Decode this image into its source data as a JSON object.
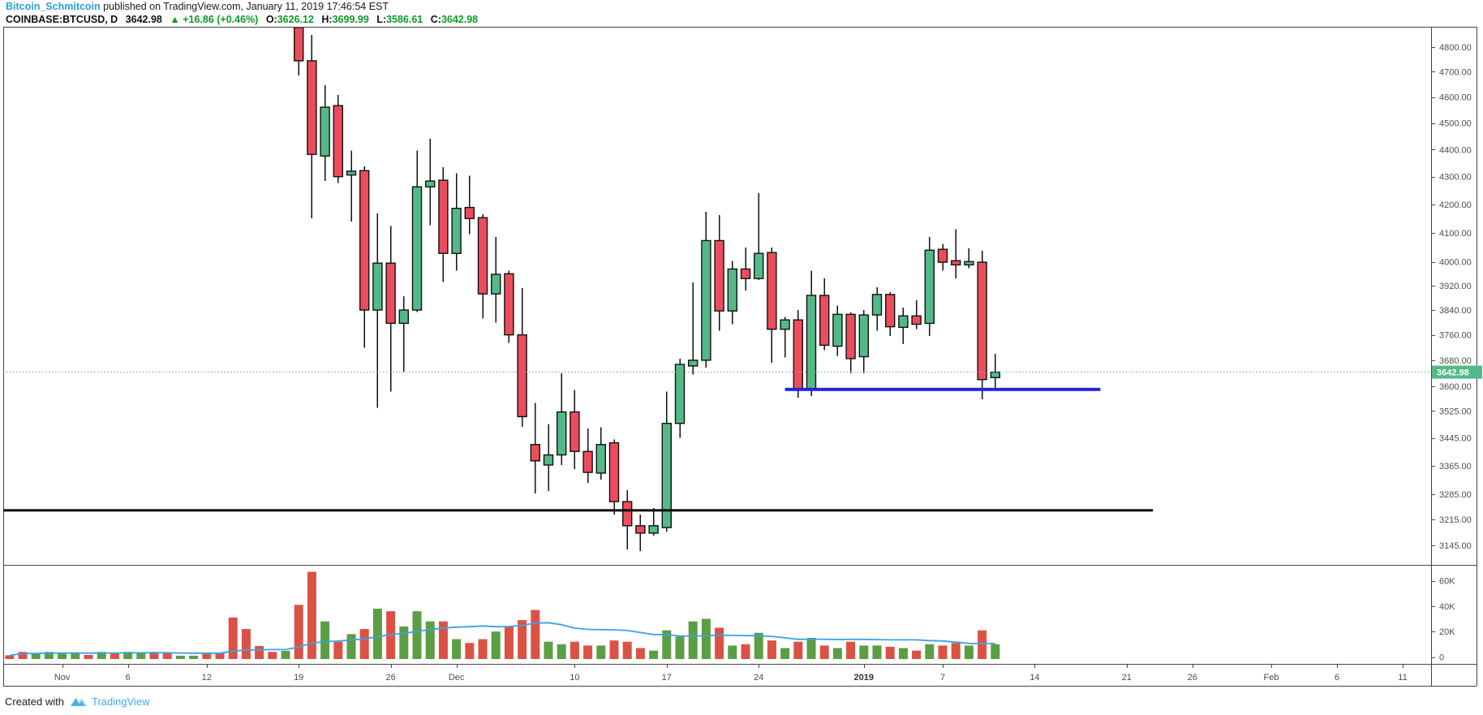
{
  "header": {
    "author": "Bitcoin_Schmitcoin",
    "published": "published on TradingView.com, January 11, 2019 17:46:54 EST",
    "symbol": "COINBASE:BTCUSD, D",
    "last_price": "3642.98",
    "up_arrow": "▲",
    "change": "+16.86 (+0.46%)",
    "ohlc": [
      {
        "label": "O:",
        "value": "3626.12"
      },
      {
        "label": "H:",
        "value": "3699.99"
      },
      {
        "label": "L:",
        "value": "3586.61"
      },
      {
        "label": "C:",
        "value": "3642.98"
      }
    ]
  },
  "footer": {
    "created_with": "Created with",
    "brand": "TradingView"
  },
  "colors": {
    "candle_up": "#53B987",
    "candle_down": "#EB4D5C",
    "candle_border": "#111111",
    "vol_up": "#5B9E43",
    "vol_down": "#DB5245",
    "volume_ma": "#3AA2E8",
    "support_line_blue": "#2424DD",
    "level_line_black": "#0B0B0B",
    "price_line": "#53B987",
    "price_label_bg": "#53B987",
    "price_label_text": "#ffffff",
    "axis_text": "#4d4d4d",
    "frame": "#444444",
    "author_link": "#2B9FD7",
    "brand_link": "#41ABDE",
    "text_green": "#0A9B26"
  },
  "chart_data": {
    "type": "candlestick+volume",
    "title": "COINBASE:BTCUSD, D",
    "scale": "log",
    "price_axis_ticks": [
      {
        "label": "4800.00",
        "value": 4800
      },
      {
        "label": "4700.00",
        "value": 4700
      },
      {
        "label": "4600.00",
        "value": 4600
      },
      {
        "label": "4500.00",
        "value": 4500
      },
      {
        "label": "4400.00",
        "value": 4400
      },
      {
        "label": "4300.00",
        "value": 4300
      },
      {
        "label": "4200.00",
        "value": 4200
      },
      {
        "label": "4100.00",
        "value": 4100
      },
      {
        "label": "4000.00",
        "value": 4000
      },
      {
        "label": "3920.00",
        "value": 3920
      },
      {
        "label": "3840.00",
        "value": 3840
      },
      {
        "label": "3760.00",
        "value": 3760
      },
      {
        "label": "3680.00",
        "value": 3680
      },
      {
        "label": "3600.00",
        "value": 3600
      },
      {
        "label": "3525.00",
        "value": 3525
      },
      {
        "label": "3445.00",
        "value": 3445
      },
      {
        "label": "3365.00",
        "value": 3365
      },
      {
        "label": "3285.00",
        "value": 3285
      },
      {
        "label": "3215.00",
        "value": 3215
      },
      {
        "label": "3145.00",
        "value": 3145
      }
    ],
    "volume_axis_ticks": [
      {
        "label": "60K",
        "value": 60
      },
      {
        "label": "40K",
        "value": 40
      },
      {
        "label": "20K",
        "value": 20
      },
      {
        "label": "0",
        "value": 0
      }
    ],
    "time_ticks": [
      {
        "label": "Nov",
        "day": 4
      },
      {
        "label": "6",
        "day": 9
      },
      {
        "label": "12",
        "day": 15
      },
      {
        "label": "19",
        "day": 22
      },
      {
        "label": "26",
        "day": 29
      },
      {
        "label": "Dec",
        "day": 34
      },
      {
        "label": "10",
        "day": 43
      },
      {
        "label": "17",
        "day": 50
      },
      {
        "label": "24",
        "day": 57
      },
      {
        "label": "2019",
        "day": 65,
        "bold": true
      },
      {
        "label": "7",
        "day": 71
      },
      {
        "label": "14",
        "day": 78
      },
      {
        "label": "21",
        "day": 85
      },
      {
        "label": "26",
        "day": 90
      },
      {
        "label": "Feb",
        "day": 96
      },
      {
        "label": "6",
        "day": 101
      },
      {
        "label": "11",
        "day": 106
      }
    ],
    "current_price": {
      "value": 3642.98,
      "label": "3642.98"
    },
    "drawings": [
      {
        "name": "support-line-blue",
        "price": 3590,
        "from_day": 59,
        "to_day": 83,
        "width": 4
      },
      {
        "name": "level-line-black",
        "price": 3240,
        "from_left_edge": true,
        "to_day": 87,
        "width": 3
      }
    ],
    "volume_ma_period": 20,
    "pre_candle_volume": {
      "columns": [
        "date",
        "dir",
        "volume_k"
      ],
      "rows": [
        [
          "Oct 28",
          "d",
          1.3
        ],
        [
          "Oct 29",
          "d",
          4
        ],
        [
          "Oct 30",
          "u",
          3
        ],
        [
          "Oct 31",
          "u",
          4
        ],
        [
          "Nov 1",
          "u",
          3.5
        ],
        [
          "Nov 2",
          "u",
          3.5
        ],
        [
          "Nov 3",
          "d",
          1.6
        ],
        [
          "Nov 4",
          "u",
          4
        ],
        [
          "Nov 5",
          "d",
          3.5
        ],
        [
          "Nov 6",
          "u",
          4
        ],
        [
          "Nov 7",
          "u",
          3.5
        ],
        [
          "Nov 8",
          "d",
          4
        ],
        [
          "Nov 9",
          "d",
          3
        ],
        [
          "Nov 10",
          "u",
          1
        ],
        [
          "Nov 11",
          "u",
          1
        ],
        [
          "Nov 12",
          "d",
          3
        ],
        [
          "Nov 13",
          "d",
          3.5
        ],
        [
          "Nov 14",
          "d",
          31
        ],
        [
          "Nov 15",
          "d",
          22
        ],
        [
          "Nov 16",
          "d",
          8.6
        ],
        [
          "Nov 17",
          "d",
          4
        ],
        [
          "Nov 18",
          "u",
          4.8
        ]
      ]
    },
    "candles": {
      "columns": [
        "date",
        "dir",
        "open",
        "high",
        "low",
        "close",
        "volume_k"
      ],
      "rows": [
        [
          "Nov 19",
          "d",
          4880,
          4905,
          4686,
          4744,
          41
        ],
        [
          "Nov 20",
          "d",
          4744,
          4850,
          4150,
          4382,
          67
        ],
        [
          "Nov 21",
          "u",
          4376,
          4647,
          4284,
          4561,
          28
        ],
        [
          "Nov 22",
          "d",
          4567,
          4608,
          4277,
          4300,
          12
        ],
        [
          "Nov 23",
          "u",
          4306,
          4397,
          4139,
          4320,
          18
        ],
        [
          "Nov 24",
          "d",
          4322,
          4338,
          3719,
          3840,
          22
        ],
        [
          "Nov 25",
          "u",
          3840,
          4168,
          3535,
          3996,
          38
        ],
        [
          "Nov 26",
          "d",
          3996,
          4124,
          3583,
          3797,
          36
        ],
        [
          "Nov 27",
          "u",
          3797,
          3885,
          3644,
          3840,
          24
        ],
        [
          "Nov 28",
          "u",
          3840,
          4397,
          3833,
          4263,
          36
        ],
        [
          "Nov 29",
          "u",
          4263,
          4440,
          4127,
          4284,
          28
        ],
        [
          "Nov 30",
          "d",
          4287,
          4334,
          3933,
          4029,
          28
        ],
        [
          "Dec 1",
          "u",
          4029,
          4313,
          3971,
          4186,
          14
        ],
        [
          "Dec 2",
          "d",
          4189,
          4303,
          4096,
          4150,
          11
        ],
        [
          "Dec 3",
          "d",
          4153,
          4165,
          3813,
          3893,
          14
        ],
        [
          "Dec 4",
          "u",
          3893,
          4085,
          3799,
          3958,
          20
        ],
        [
          "Dec 5",
          "d",
          3960,
          3971,
          3735,
          3760,
          24
        ],
        [
          "Dec 6",
          "d",
          3760,
          3912,
          3478,
          3508,
          29
        ],
        [
          "Dec 7",
          "d",
          3426,
          3549,
          3287,
          3379,
          37
        ],
        [
          "Dec 8",
          "u",
          3367,
          3486,
          3294,
          3396,
          12
        ],
        [
          "Dec 9",
          "u",
          3396,
          3639,
          3367,
          3522,
          10
        ],
        [
          "Dec 10",
          "d",
          3522,
          3588,
          3355,
          3406,
          12
        ],
        [
          "Dec 11",
          "d",
          3406,
          3473,
          3316,
          3346,
          9
        ],
        [
          "Dec 12",
          "u",
          3344,
          3476,
          3325,
          3426,
          9
        ],
        [
          "Dec 13",
          "d",
          3431,
          3441,
          3229,
          3264,
          13
        ],
        [
          "Dec 14",
          "d",
          3264,
          3296,
          3134,
          3198,
          12
        ],
        [
          "Dec 15",
          "d",
          3198,
          3229,
          3130,
          3178,
          7
        ],
        [
          "Dec 16",
          "u",
          3178,
          3246,
          3171,
          3198,
          5
        ],
        [
          "Dec 17",
          "u",
          3193,
          3583,
          3182,
          3488,
          21
        ],
        [
          "Dec 18",
          "u",
          3488,
          3685,
          3446,
          3667,
          16
        ],
        [
          "Dec 19",
          "u",
          3662,
          3931,
          3636,
          3680,
          28
        ],
        [
          "Dec 20",
          "u",
          3680,
          4174,
          3657,
          4073,
          30
        ],
        [
          "Dec 21",
          "d",
          4073,
          4162,
          3773,
          3837,
          23
        ],
        [
          "Dec 22",
          "u",
          3837,
          4004,
          3794,
          3976,
          9
        ],
        [
          "Dec 23",
          "d",
          3976,
          4049,
          3904,
          3944,
          10
        ],
        [
          "Dec 24",
          "u",
          3944,
          4240,
          3939,
          4029,
          19
        ],
        [
          "Dec 25",
          "d",
          4032,
          4049,
          3672,
          3778,
          13
        ],
        [
          "Dec 26",
          "u",
          3778,
          3818,
          3688,
          3808,
          7
        ],
        [
          "Dec 27",
          "d",
          3808,
          3840,
          3565,
          3588,
          12
        ],
        [
          "Dec 28",
          "u",
          3588,
          3971,
          3570,
          3888,
          15
        ],
        [
          "Dec 29",
          "d",
          3888,
          3944,
          3711,
          3727,
          9
        ],
        [
          "Dec 30",
          "u",
          3724,
          3855,
          3693,
          3826,
          7
        ],
        [
          "Dec 31",
          "d",
          3826,
          3832,
          3639,
          3685,
          12
        ],
        [
          "Jan 1",
          "u",
          3691,
          3840,
          3639,
          3824,
          9
        ],
        [
          "Jan 2",
          "u",
          3824,
          3915,
          3773,
          3891,
          9
        ],
        [
          "Jan 3",
          "d",
          3891,
          3899,
          3757,
          3786,
          8
        ],
        [
          "Jan 4",
          "u",
          3784,
          3848,
          3730,
          3821,
          7
        ],
        [
          "Jan 5",
          "d",
          3821,
          3872,
          3778,
          3794,
          5
        ],
        [
          "Jan 6",
          "u",
          3797,
          4085,
          3757,
          4040,
          10
        ],
        [
          "Jan 7",
          "d",
          4043,
          4062,
          3971,
          3999,
          9
        ],
        [
          "Jan 8",
          "d",
          4004,
          4113,
          3944,
          3990,
          11
        ],
        [
          "Jan 9",
          "u",
          3990,
          4046,
          3979,
          4001,
          9
        ],
        [
          "Jan 10",
          "d",
          3999,
          4038,
          3560,
          3620,
          21
        ],
        [
          "Jan 11",
          "u",
          3626.12,
          3699.99,
          3586.61,
          3642.98,
          10
        ]
      ]
    }
  }
}
